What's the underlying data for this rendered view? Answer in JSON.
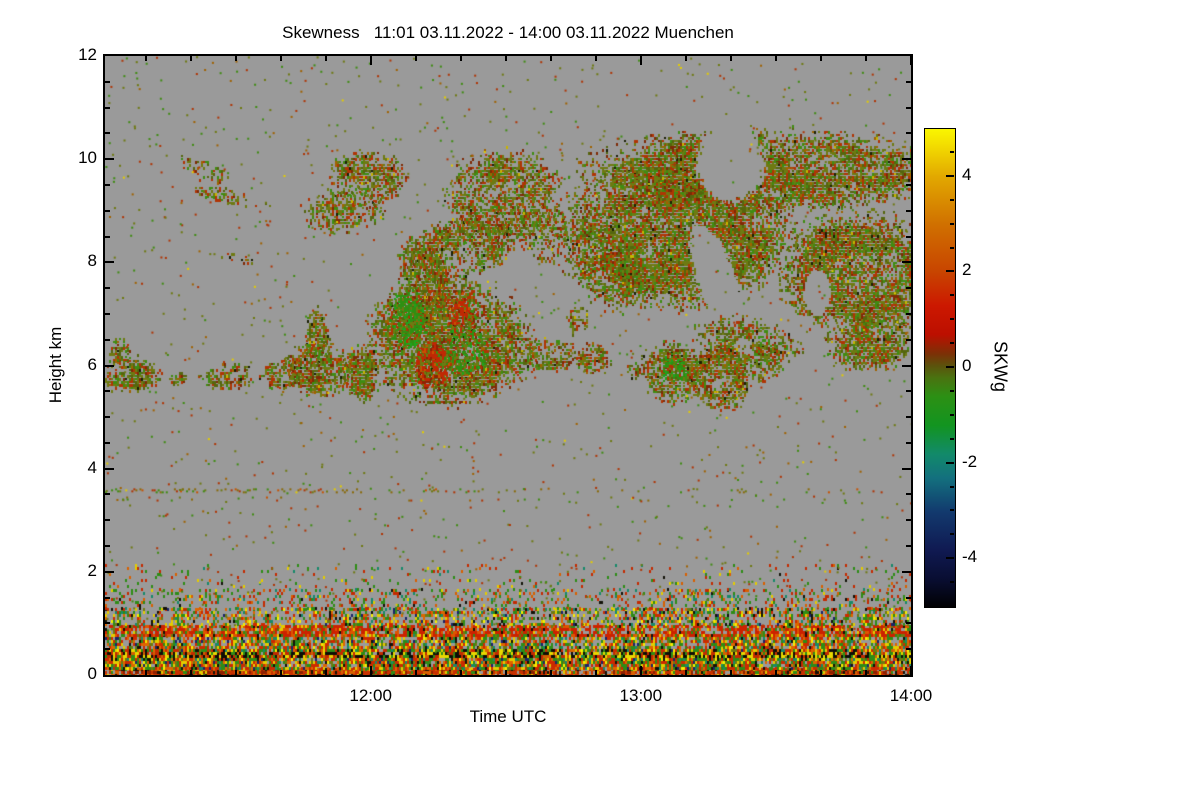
{
  "title": "Skewness   11:01 03.11.2022 - 14:00 03.11.2022 Muenchen",
  "axes": {
    "x": {
      "label": "Time UTC",
      "start_minute": 1,
      "end_minute": 180,
      "major_ticks": [
        {
          "minute": 60,
          "label": "12:00"
        },
        {
          "minute": 120,
          "label": "13:00"
        },
        {
          "minute": 180,
          "label": "14:00"
        }
      ],
      "minor_step_minutes": 10
    },
    "y": {
      "label": "Height km",
      "min": 0,
      "max": 12,
      "major_ticks": [
        0,
        2,
        4,
        6,
        8,
        10,
        12
      ],
      "minor_step": 0.5
    }
  },
  "colorbar": {
    "label": "SKWg",
    "min": -5,
    "max": 5,
    "major_ticks": [
      -4,
      -2,
      0,
      2,
      4
    ],
    "minor_step": 0.5,
    "gradient": [
      [
        0.0,
        "#010103"
      ],
      [
        0.06,
        "#090e33"
      ],
      [
        0.12,
        "#101a52"
      ],
      [
        0.2,
        "#123a6e"
      ],
      [
        0.27,
        "#13707e"
      ],
      [
        0.32,
        "#128a6a"
      ],
      [
        0.38,
        "#129420"
      ],
      [
        0.44,
        "#2c9014"
      ],
      [
        0.48,
        "#4a7210"
      ],
      [
        0.505,
        "#5c520c"
      ],
      [
        0.53,
        "#7c3006"
      ],
      [
        0.57,
        "#bc0f00"
      ],
      [
        0.63,
        "#cc1800"
      ],
      [
        0.7,
        "#c84400"
      ],
      [
        0.8,
        "#d07000"
      ],
      [
        0.9,
        "#e2a800"
      ],
      [
        0.97,
        "#f4e000"
      ],
      [
        1.0,
        "#faf600"
      ]
    ]
  },
  "chart_data": {
    "type": "heatmap",
    "title": "Skewness 11:01 03.11.2022 - 14:00 03.11.2022 Muenchen",
    "xlabel": "Time UTC",
    "ylabel": "Height km",
    "x_range_utc": [
      "11:01",
      "14:00"
    ],
    "y_range_km": [
      0,
      12
    ],
    "value_label": "SKWg",
    "value_range": [
      -5,
      5
    ],
    "background_color": "#9a9a9a",
    "seed": 42,
    "palettes": {
      "cirrus": [
        [
          "#6e7a12",
          5
        ],
        [
          "#55660e",
          3
        ],
        [
          "#3f8c12",
          2.5
        ],
        [
          "#b03404",
          3
        ],
        [
          "#7e2a06",
          1.5
        ],
        [
          "#a06200",
          1
        ],
        [
          "#c8b400",
          0.15
        ],
        [
          "#1a2006",
          0.25
        ]
      ],
      "red_patch": [
        [
          "#c02804",
          6
        ],
        [
          "#8e2204",
          2
        ],
        [
          "#c85200",
          1.5
        ],
        [
          "#6e7a12",
          1.2
        ],
        [
          "#3f8c12",
          0.5
        ]
      ],
      "green_patch": [
        [
          "#2e9012",
          5
        ],
        [
          "#1ea41e",
          2
        ],
        [
          "#6e7a12",
          2
        ],
        [
          "#b03404",
          0.8
        ]
      ],
      "bl_mix": [
        [
          "#2e8c16",
          3
        ],
        [
          "#cc2a00",
          3
        ],
        [
          "#dd6600",
          2
        ],
        [
          "#e3cc00",
          1.6
        ],
        [
          "#17896a",
          1
        ],
        [
          "#121208",
          1
        ],
        [
          "#1a2468",
          0.5
        ],
        [
          "#f8ee00",
          0.6
        ],
        [
          "#6e7a12",
          1
        ]
      ],
      "bl_red": [
        [
          "#cc2200",
          5
        ],
        [
          "#dd5500",
          2
        ],
        [
          "#2e8c16",
          1.2
        ],
        [
          "#e3cc00",
          1
        ],
        [
          "#121208",
          0.5
        ],
        [
          "#6e7a12",
          0.8
        ]
      ],
      "bl_dark": [
        [
          "#0e0e06",
          3
        ],
        [
          "#e8d800",
          2.4
        ],
        [
          "#c22a00",
          2
        ],
        [
          "#2e8c16",
          1.6
        ],
        [
          "#d06000",
          1
        ]
      ],
      "bl_hot": [
        [
          "#c83000",
          4
        ],
        [
          "#d86000",
          2
        ],
        [
          "#8e2000",
          2
        ],
        [
          "#121206",
          1
        ],
        [
          "#2e8c16",
          1
        ],
        [
          "#e3cc00",
          1
        ]
      ],
      "bl_sparse": [
        [
          "#2e8c16",
          3
        ],
        [
          "#c42a00",
          3
        ],
        [
          "#d86000",
          1.5
        ],
        [
          "#e3cc00",
          1
        ],
        [
          "#17896a",
          1
        ],
        [
          "#121208",
          0.5
        ]
      ],
      "speck": [
        [
          "#6e7a12",
          3
        ],
        [
          "#b03404",
          2
        ],
        [
          "#3f8c12",
          2
        ],
        [
          "#a06200",
          1
        ],
        [
          "#e3cc00",
          0.3
        ]
      ],
      "line": [
        [
          "#8a6a08",
          3
        ],
        [
          "#b03404",
          2.5
        ],
        [
          "#3f8c12",
          2
        ],
        [
          "#6e7a12",
          2
        ],
        [
          "#e3cc00",
          0.4
        ],
        [
          "#c85200",
          1
        ]
      ]
    },
    "cloud_blobs": [
      {
        "t": 23,
        "h": 9.8,
        "rt": 2.2,
        "rh": 0.5,
        "rot": -65,
        "d": 0.5,
        "p": "cirrus",
        "seed": 1
      },
      {
        "t": 28.5,
        "h": 9.3,
        "rt": 1.8,
        "rh": 0.8,
        "rot": -78,
        "d": 0.4,
        "p": "cirrus",
        "seed": 2
      },
      {
        "t": 30.5,
        "h": 8.1,
        "rt": 1.2,
        "rh": 0.35,
        "rot": -80,
        "d": 0.35,
        "p": "cirrus",
        "seed": 3
      },
      {
        "t": 54,
        "h": 9.05,
        "rt": 9,
        "rh": 0.4,
        "rot": -8,
        "d": 0.55,
        "p": "cirrus",
        "seed": 4
      },
      {
        "t": 59,
        "h": 9.65,
        "rt": 8,
        "rh": 0.5,
        "rot": 0,
        "d": 0.7,
        "p": "cirrus",
        "seed": 5
      },
      {
        "t": 80,
        "h": 8.3,
        "rt": 13,
        "rh": 0.55,
        "rot": -18,
        "d": 0.65,
        "p": "cirrus",
        "seed": 6
      },
      {
        "t": 89,
        "h": 9.3,
        "rt": 12,
        "rh": 0.85,
        "rot": 0,
        "d": 0.8,
        "p": "cirrus",
        "seed": 7
      },
      {
        "t": 98,
        "h": 8.6,
        "rt": 5,
        "rh": 0.7,
        "rot": -40,
        "d": 0.5,
        "p": "cirrus",
        "seed": 8
      },
      {
        "t": 71,
        "h": 8.05,
        "rt": 4,
        "rh": 0.5,
        "rot": -30,
        "d": 0.45,
        "p": "cirrus",
        "seed": 9
      },
      {
        "t": 77,
        "h": 6.5,
        "rt": 17,
        "rh": 1.15,
        "rot": 0,
        "d": 0.93,
        "p": "cirrus",
        "seed": 10
      },
      {
        "t": 72,
        "h": 7.55,
        "rt": 5.5,
        "rh": 0.75,
        "rot": 0,
        "d": 0.8,
        "p": "cirrus",
        "seed": 11
      },
      {
        "t": 73.5,
        "h": 6.0,
        "rt": 4,
        "rh": 0.5,
        "rot": 0,
        "d": 0.85,
        "p": "red_patch",
        "seed": 12
      },
      {
        "t": 80,
        "h": 7.0,
        "rt": 3,
        "rh": 0.4,
        "rot": 0,
        "d": 0.6,
        "p": "red_patch",
        "seed": 13
      },
      {
        "t": 68,
        "h": 6.9,
        "rt": 4,
        "rh": 0.55,
        "rot": 0,
        "d": 0.7,
        "p": "green_patch",
        "seed": 14
      },
      {
        "t": 81,
        "h": 6.3,
        "rt": 4.5,
        "rh": 0.5,
        "rot": 0,
        "d": 0.65,
        "p": "green_patch",
        "seed": 15
      },
      {
        "t": 58,
        "h": 5.9,
        "rt": 4,
        "rh": 0.55,
        "rot": 0,
        "d": 0.8,
        "p": "cirrus",
        "seed": 16
      },
      {
        "t": 93,
        "h": 6.2,
        "rt": 3.5,
        "rh": 0.45,
        "rot": 0,
        "d": 0.7,
        "p": "cirrus",
        "seed": 17
      },
      {
        "t": 113,
        "h": 8.0,
        "rt": 8,
        "rh": 0.9,
        "rot": -30,
        "d": 0.6,
        "p": "cirrus",
        "seed": 18
      },
      {
        "t": 146,
        "h": 9.8,
        "rt": 38,
        "rh": 0.75,
        "rot": 0,
        "d": 0.88,
        "p": "cirrus",
        "seed": 19
      },
      {
        "t": 127,
        "h": 8.5,
        "rt": 25,
        "rh": 1.25,
        "rot": 0,
        "d": 0.9,
        "p": "cirrus",
        "seed": 20
      },
      {
        "t": 168,
        "h": 7.8,
        "rt": 16,
        "rh": 1.15,
        "rot": 0,
        "d": 0.88,
        "p": "cirrus",
        "seed": 21
      }
    ],
    "gray_holes": [
      {
        "t": 140,
        "h": 9.95,
        "rt": 8,
        "rh": 0.78,
        "rot": 0,
        "seed": 41
      },
      {
        "t": 136.5,
        "h": 7.75,
        "rt": 4.5,
        "rh": 1.05,
        "rot": -20,
        "seed": 42
      },
      {
        "t": 159,
        "h": 7.45,
        "rt": 3,
        "rh": 0.45,
        "rot": 0,
        "seed": 43
      }
    ],
    "overlay_blobs": [
      {
        "t": 143,
        "h": 6.5,
        "rt": 5,
        "rh": 1.0,
        "rot": -80,
        "d": 0.55,
        "p": "cirrus",
        "seed": 22
      },
      {
        "t": 147,
        "h": 6.05,
        "rt": 4,
        "rh": 0.4,
        "rot": 0,
        "d": 0.6,
        "p": "cirrus",
        "seed": 23
      },
      {
        "t": 6,
        "h": 5.85,
        "rt": 6.5,
        "rh": 0.35,
        "rot": 0,
        "d": 0.75,
        "p": "cirrus",
        "seed": 24
      },
      {
        "t": 4,
        "h": 6.3,
        "rt": 2.5,
        "rh": 0.25,
        "rot": 0,
        "d": 0.5,
        "p": "cirrus",
        "seed": 25
      },
      {
        "t": 17,
        "h": 5.75,
        "rt": 2.5,
        "rh": 0.16,
        "rot": 0,
        "d": 0.4,
        "p": "cirrus",
        "seed": 26
      },
      {
        "t": 28,
        "h": 5.8,
        "rt": 6,
        "rh": 0.26,
        "rot": 0,
        "d": 0.55,
        "p": "cirrus",
        "seed": 27
      },
      {
        "t": 40,
        "h": 5.85,
        "rt": 4.5,
        "rh": 0.3,
        "rot": 0,
        "d": 0.6,
        "p": "cirrus",
        "seed": 28
      },
      {
        "t": 48,
        "h": 5.95,
        "rt": 7,
        "rh": 0.5,
        "rot": 0,
        "d": 0.85,
        "p": "cirrus",
        "seed": 29
      },
      {
        "t": 48,
        "h": 6.6,
        "rt": 2.6,
        "rh": 0.5,
        "rot": 0,
        "d": 0.7,
        "p": "cirrus",
        "seed": 30
      },
      {
        "t": 100,
        "h": 6.25,
        "rt": 5,
        "rh": 0.33,
        "rot": 0,
        "d": 0.8,
        "p": "cirrus",
        "seed": 31
      },
      {
        "t": 109,
        "h": 6.15,
        "rt": 4,
        "rh": 0.3,
        "rot": 0,
        "d": 0.7,
        "p": "cirrus",
        "seed": 32
      },
      {
        "t": 127,
        "h": 5.9,
        "rt": 7,
        "rh": 0.55,
        "rot": 0,
        "d": 0.85,
        "p": "cirrus",
        "seed": 33
      },
      {
        "t": 127,
        "h": 5.95,
        "rt": 3,
        "rh": 0.3,
        "rot": 0,
        "d": 0.6,
        "p": "green_patch",
        "seed": 34
      },
      {
        "t": 138,
        "h": 5.8,
        "rt": 6,
        "rh": 0.6,
        "rot": 0,
        "d": 0.85,
        "p": "cirrus",
        "seed": 35
      },
      {
        "t": 171,
        "h": 6.45,
        "rt": 10,
        "rh": 0.5,
        "rot": -6,
        "d": 0.75,
        "p": "cirrus",
        "seed": 36
      },
      {
        "t": 118,
        "h": 5.9,
        "rt": 2,
        "rh": 0.2,
        "rot": 0,
        "d": 0.4,
        "p": "cirrus",
        "seed": 37
      },
      {
        "t": 106,
        "h": 6.9,
        "rt": 2.5,
        "rh": 0.3,
        "rot": 0,
        "d": 0.5,
        "p": "cirrus",
        "seed": 38
      }
    ],
    "speckle_lines": [
      {
        "h": 3.58,
        "palette": "line",
        "segments": [
          {
            "t0": 1,
            "t1": 50,
            "d": 0.5
          },
          {
            "t0": 50,
            "t1": 90,
            "d": 0.3
          },
          {
            "t0": 90,
            "t1": 180,
            "d": 0.15
          }
        ]
      },
      {
        "h": 3.44,
        "palette": "line",
        "segments": [
          {
            "t0": 3,
            "t1": 40,
            "d": 0.12
          },
          {
            "t0": 40,
            "t1": 180,
            "d": 0.05
          }
        ]
      }
    ],
    "boundary_layer": {
      "bands": [
        {
          "h0": 0.0,
          "h1": 0.12,
          "d": 0.97,
          "p": "bl_hot"
        },
        {
          "h0": 0.12,
          "h1": 0.38,
          "d": 0.92,
          "p": "bl_mix"
        },
        {
          "h0": 0.38,
          "h1": 0.5,
          "d": 0.88,
          "p": "bl_dark"
        },
        {
          "h0": 0.5,
          "h1": 0.78,
          "d": 0.72,
          "p": "bl_mix"
        },
        {
          "h0": 0.78,
          "h1": 0.96,
          "d": 0.78,
          "p": "bl_red"
        },
        {
          "h0": 0.96,
          "h1": 1.28,
          "d": 0.45,
          "p": "bl_mix"
        },
        {
          "h0": 1.28,
          "h1": 1.65,
          "d": 0.22,
          "p": "bl_sparse"
        },
        {
          "h0": 1.65,
          "h1": 2.15,
          "d": 0.07,
          "p": "bl_sparse"
        }
      ]
    },
    "global_speckle": {
      "count": 1600,
      "palette": "speck"
    }
  }
}
